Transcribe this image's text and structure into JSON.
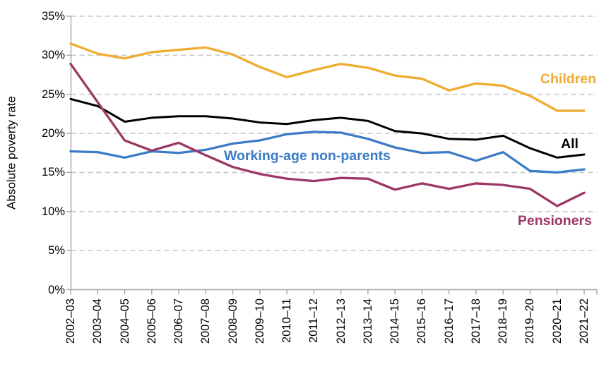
{
  "chart_data": {
    "type": "line",
    "title": "",
    "ylabel": "Absolute poverty rate",
    "xlabel": "",
    "ylim": [
      0,
      35
    ],
    "grid": "horizontal-dashed",
    "legend": "direct-labels-on-chart",
    "x_label_rotation_degrees": -90,
    "y_ticks": [
      {
        "v": 0,
        "label": "0%"
      },
      {
        "v": 5,
        "label": "5%"
      },
      {
        "v": 10,
        "label": "10%"
      },
      {
        "v": 15,
        "label": "15%"
      },
      {
        "v": 20,
        "label": "20%"
      },
      {
        "v": 25,
        "label": "25%"
      },
      {
        "v": 30,
        "label": "30%"
      },
      {
        "v": 35,
        "label": "35%"
      }
    ],
    "categories": [
      "2002–03",
      "2003–04",
      "2004–05",
      "2005–06",
      "2006–07",
      "2007–08",
      "2008–09",
      "2009–10",
      "2010–11",
      "2011–12",
      "2012–13",
      "2013–14",
      "2014–15",
      "2015–16",
      "2016–17",
      "2017–18",
      "2018–19",
      "2019–20",
      "2020–21",
      "2021–22"
    ],
    "series": [
      {
        "name": "Children",
        "color": "#EFAC2F",
        "values": [
          31.5,
          30.2,
          29.6,
          30.4,
          30.7,
          31.0,
          30.1,
          28.5,
          27.2,
          28.1,
          28.9,
          28.4,
          27.4,
          27.0,
          25.5,
          26.4,
          26.1,
          24.8,
          22.9,
          22.9
        ]
      },
      {
        "name": "All",
        "color": "#000000",
        "values": [
          24.4,
          23.5,
          21.5,
          22.0,
          22.2,
          22.2,
          21.9,
          21.4,
          21.2,
          21.7,
          22.0,
          21.6,
          20.3,
          20.0,
          19.3,
          19.2,
          19.7,
          18.1,
          16.9,
          17.3
        ]
      },
      {
        "name": "Working-age non-parents",
        "color": "#3C7CC6",
        "values": [
          17.7,
          17.6,
          16.9,
          17.7,
          17.5,
          17.9,
          18.7,
          19.1,
          19.9,
          20.2,
          20.1,
          19.3,
          18.2,
          17.5,
          17.6,
          16.5,
          17.6,
          15.2,
          15.0,
          15.4
        ]
      },
      {
        "name": "Pensioners",
        "color": "#9C3766",
        "values": [
          28.9,
          24.0,
          19.1,
          17.8,
          18.8,
          17.2,
          15.7,
          14.8,
          14.2,
          13.9,
          14.3,
          14.2,
          12.8,
          13.6,
          12.9,
          13.6,
          13.4,
          12.9,
          10.7,
          12.4
        ]
      }
    ],
    "colors": {
      "background": "#FFFFFF",
      "gridline": "#C9C9C9",
      "axis": "#A6A6A6",
      "tick_text": "#000000"
    }
  }
}
